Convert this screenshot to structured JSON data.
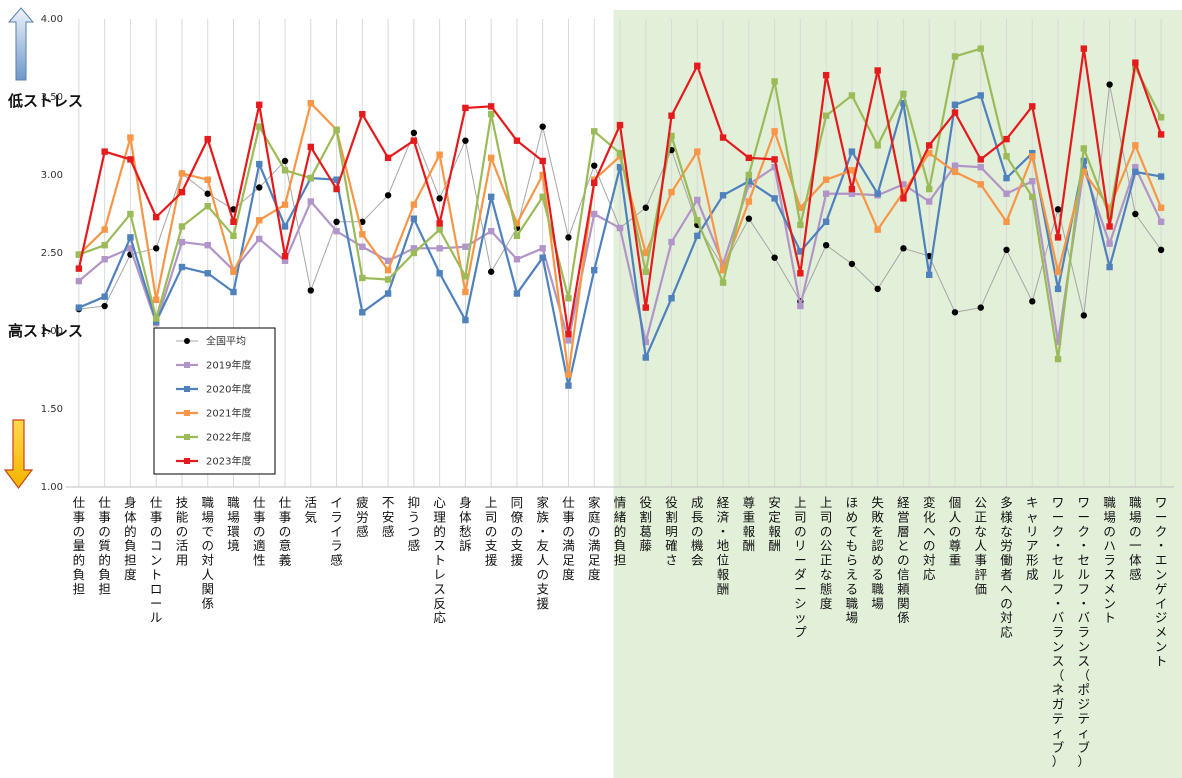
{
  "side_labels": {
    "top": "低ストレス",
    "bottom": "高ストレス"
  },
  "chart_data": {
    "type": "line",
    "ylim": [
      1.0,
      4.0
    ],
    "yticks": [
      "1.00",
      "1.50",
      "2.00",
      "2.50",
      "3.00",
      "3.50",
      "4.00"
    ],
    "categories": [
      "仕事の量的負担",
      "仕事の質的負担",
      "身体的負担度",
      "仕事のコントロール",
      "技能の活用",
      "職場での対人関係",
      "職場環境",
      "仕事の適性",
      "仕事の意義",
      "活気",
      "イライラ感",
      "疲労感",
      "不安感",
      "抑うつ感",
      "心理的ストレス反応",
      "身体愁訴",
      "上司の支援",
      "同僚の支援",
      "家族・友人の支援",
      "仕事の満足度",
      "家庭の満足度",
      "情緒的負担",
      "役割葛藤",
      "役割明確さ",
      "成長の機会",
      "経済・地位報酬",
      "尊重報酬",
      "安定報酬",
      "上司のリーダーシップ",
      "上司の公正な態度",
      "ほめてもらえる職場",
      "失敗を認める職場",
      "経営層との信頼関係",
      "変化への対応",
      "個人の尊重",
      "公正な人事評価",
      "多様な労働者への対応",
      "キャリア形成",
      "ワーク・セルフ・バランス（ネガティブ）",
      "ワーク・セルフ・バランス（ポジティブ）",
      "職場のハラスメント",
      "職場の一体感",
      "ワーク・エンゲイジメント"
    ],
    "highlight_from_category": "情緒的負担",
    "highlight_color": "#e2efd9",
    "series": [
      {
        "name": "全国平均",
        "color": "#000000",
        "line_color": "#a6a6a6",
        "marker": "circle",
        "values": [
          2.14,
          2.16,
          2.49,
          2.53,
          3.01,
          2.88,
          2.78,
          2.92,
          3.09,
          2.26,
          2.7,
          2.7,
          2.87,
          3.27,
          2.85,
          3.22,
          2.38,
          2.66,
          3.31,
          2.6,
          3.06,
          2.66,
          2.79,
          3.16,
          2.68,
          2.41,
          2.72,
          2.47,
          2.19,
          2.55,
          2.43,
          2.27,
          2.53,
          2.48,
          2.12,
          2.15,
          2.52,
          2.19,
          2.78,
          2.1,
          3.58,
          2.75,
          2.52
        ]
      },
      {
        "name": "2019年度",
        "color": "#b295c8",
        "marker": "square",
        "values": [
          2.32,
          2.46,
          2.53,
          2.05,
          2.57,
          2.55,
          2.39,
          2.59,
          2.45,
          2.83,
          2.64,
          2.54,
          2.45,
          2.53,
          2.53,
          2.54,
          2.64,
          2.46,
          2.53,
          1.94,
          2.75,
          2.66,
          1.93,
          2.57,
          2.84,
          2.43,
          2.94,
          3.05,
          2.16,
          2.88,
          2.88,
          2.87,
          2.94,
          2.83,
          3.06,
          3.05,
          2.88,
          2.96,
          1.93,
          3.04,
          2.56,
          3.05,
          2.7
        ]
      },
      {
        "name": "2020年度",
        "color": "#4f81bd",
        "marker": "square",
        "values": [
          2.15,
          2.22,
          2.6,
          2.06,
          2.41,
          2.37,
          2.25,
          3.07,
          2.67,
          2.98,
          2.97,
          2.12,
          2.24,
          2.72,
          2.37,
          2.07,
          2.86,
          2.24,
          2.47,
          1.65,
          2.39,
          3.05,
          1.83,
          2.21,
          2.61,
          2.87,
          2.96,
          2.85,
          2.51,
          2.7,
          3.15,
          2.88,
          3.46,
          2.36,
          3.45,
          3.51,
          2.98,
          3.14,
          2.27,
          3.09,
          2.41,
          3.02,
          2.99
        ]
      },
      {
        "name": "2021年度",
        "color": "#f79646",
        "marker": "square",
        "values": [
          2.49,
          2.65,
          3.24,
          2.2,
          3.01,
          2.97,
          2.38,
          2.71,
          2.81,
          3.46,
          3.29,
          2.62,
          2.39,
          2.81,
          3.13,
          2.25,
          3.11,
          2.69,
          3.0,
          1.72,
          2.97,
          3.12,
          2.5,
          2.89,
          3.15,
          2.39,
          2.83,
          3.28,
          2.79,
          2.97,
          3.03,
          2.65,
          2.89,
          3.14,
          3.02,
          2.94,
          2.7,
          3.12,
          2.38,
          3.02,
          2.79,
          3.19,
          2.79
        ]
      },
      {
        "name": "2022年度",
        "color": "#9bbb59",
        "marker": "square",
        "values": [
          2.49,
          2.55,
          2.75,
          2.08,
          2.67,
          2.8,
          2.61,
          3.31,
          3.03,
          2.98,
          3.29,
          2.34,
          2.33,
          2.5,
          2.65,
          2.35,
          3.39,
          2.61,
          2.86,
          2.21,
          3.28,
          3.14,
          2.38,
          3.25,
          2.71,
          2.31,
          3.0,
          3.6,
          2.68,
          3.38,
          3.51,
          3.19,
          3.52,
          2.91,
          3.76,
          3.81,
          3.12,
          2.86,
          1.82,
          3.17,
          2.74,
          3.69,
          3.37
        ]
      },
      {
        "name": "2023年度",
        "color": "#e41a1c",
        "marker": "square",
        "values": [
          2.4,
          3.15,
          3.1,
          2.73,
          2.89,
          3.23,
          2.7,
          3.45,
          2.48,
          3.18,
          2.91,
          3.39,
          3.11,
          3.22,
          2.69,
          3.43,
          3.44,
          3.22,
          3.09,
          1.98,
          2.95,
          3.32,
          2.15,
          3.38,
          3.7,
          3.24,
          3.11,
          3.1,
          2.37,
          3.64,
          2.91,
          3.67,
          2.85,
          3.19,
          3.4,
          3.1,
          3.23,
          3.44,
          2.6,
          3.81,
          2.67,
          3.72,
          3.26
        ]
      }
    ]
  }
}
